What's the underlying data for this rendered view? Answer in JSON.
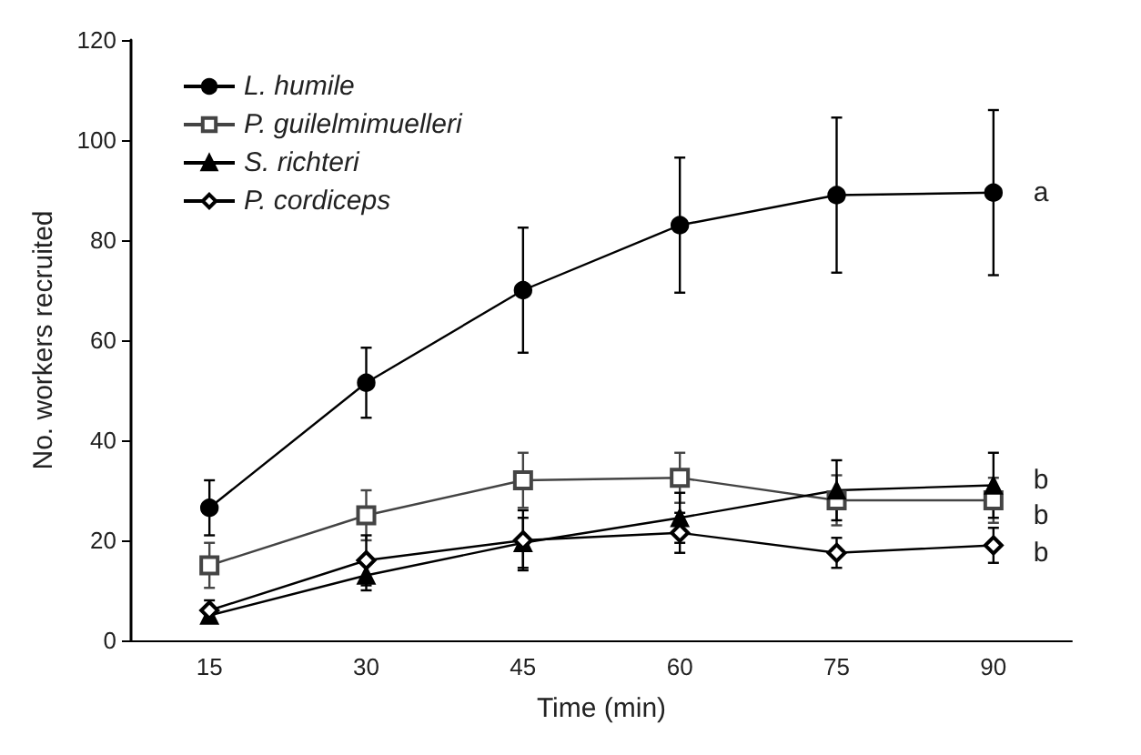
{
  "chart_data": {
    "type": "line",
    "xlabel": "Time (min)",
    "ylabel": "No. workers recruited",
    "categories": [
      "15",
      "30",
      "45",
      "60",
      "75",
      "90"
    ],
    "ylim": [
      0,
      120
    ],
    "yticks": [
      0,
      20,
      40,
      60,
      80,
      100,
      120
    ],
    "grid": false,
    "legend": "top left",
    "line_style": "solid",
    "series": [
      {
        "name": "L. humile",
        "color": "#000000",
        "marker": "circle",
        "values": [
          26.5,
          51.5,
          70,
          83,
          89,
          89.5
        ],
        "errors": [
          5.5,
          7,
          12.5,
          13.5,
          15.5,
          16.5
        ]
      },
      {
        "name": "P. guilelmimuelleri",
        "color": "#444444",
        "marker": "square",
        "values": [
          15,
          25,
          32,
          32.5,
          28,
          28
        ],
        "errors": [
          4.5,
          5,
          5.5,
          5,
          5,
          4.5
        ]
      },
      {
        "name": "S. richteri",
        "color": "#000000",
        "marker": "triangle",
        "values": [
          5,
          13,
          19.5,
          24.5,
          30,
          31
        ],
        "errors": [
          1.5,
          3,
          5,
          5,
          6,
          6.5
        ]
      },
      {
        "name": "P. cordiceps",
        "color": "#000000",
        "marker": "diamond",
        "values": [
          6,
          16,
          20,
          21.5,
          17.5,
          19
        ],
        "errors": [
          2,
          5,
          6,
          4,
          3,
          3.5
        ]
      }
    ],
    "annotations": [
      {
        "text": "a",
        "x": "90",
        "y": 89.5
      },
      {
        "text": "b",
        "x": "90",
        "y": 32
      },
      {
        "text": "b",
        "x": "90",
        "y": 25
      },
      {
        "text": "b",
        "x": "90",
        "y": 17.5
      }
    ]
  }
}
